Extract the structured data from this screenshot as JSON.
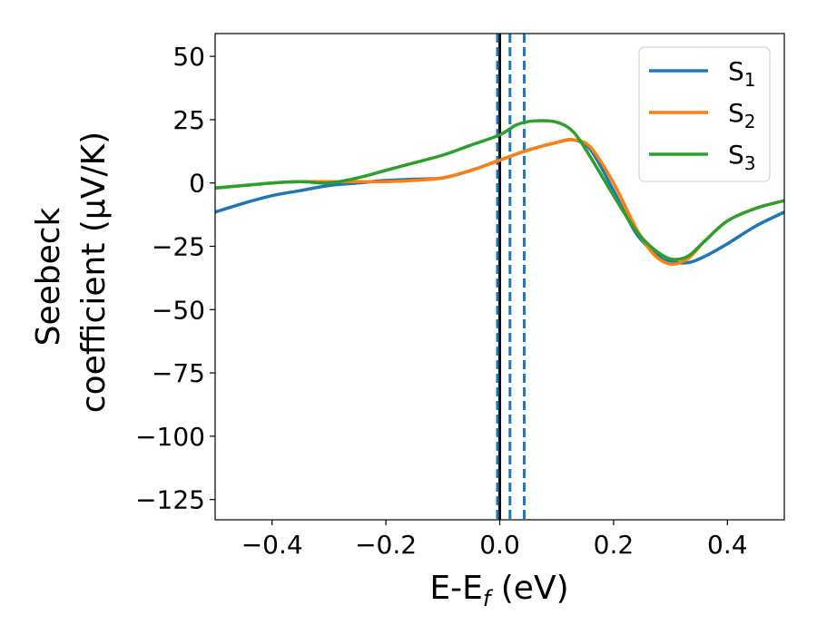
{
  "chart_data": {
    "type": "line",
    "title": "",
    "xlabel": "E-E",
    "xlabel_sub": "f",
    "xlabel_unit": " (eV)",
    "ylabel_line1": "Seebeck",
    "ylabel_line2": "coefficient  (μV/K)",
    "xlim": [
      -0.5,
      0.5
    ],
    "ylim": [
      -133,
      59
    ],
    "xticks": [
      -0.4,
      -0.2,
      0.0,
      0.2,
      0.4
    ],
    "xtick_labels": [
      "−0.4",
      "−0.2",
      "0.0",
      "0.2",
      "0.4"
    ],
    "yticks": [
      50,
      25,
      0,
      -25,
      -50,
      -75,
      -100,
      -125
    ],
    "ytick_labels": [
      "50",
      "25",
      "0",
      "−25",
      "−50",
      "−75",
      "−100",
      "−125"
    ],
    "grid": false,
    "legend_position": "top-right",
    "vlines": [
      {
        "x": 0.0,
        "style": "solid",
        "color": "#000000"
      },
      {
        "x": -0.004,
        "style": "dashed",
        "color": "#1f77b4"
      },
      {
        "x": 0.018,
        "style": "dashed",
        "color": "#1f77b4"
      },
      {
        "x": 0.043,
        "style": "dashed",
        "color": "#1f77b4"
      }
    ],
    "series": [
      {
        "name": "S",
        "sub": "1",
        "color": "#1f77b4",
        "x": [
          -0.5,
          -0.45,
          -0.4,
          -0.35,
          -0.3,
          -0.25,
          -0.2,
          -0.15,
          -0.1,
          -0.05,
          0.0,
          0.05,
          0.1,
          0.13,
          0.16,
          0.2,
          0.24,
          0.28,
          0.3,
          0.33,
          0.36,
          0.4,
          0.45,
          0.5
        ],
        "y": [
          -11.5,
          -8,
          -5,
          -3,
          -1,
          0,
          1,
          1.5,
          2,
          5,
          9,
          13,
          16,
          17,
          13,
          -3,
          -20,
          -29,
          -31,
          -31.5,
          -29,
          -24,
          -17,
          -11.5
        ]
      },
      {
        "name": "S",
        "sub": "2",
        "color": "#ff7f0e",
        "x": [
          -0.5,
          -0.45,
          -0.4,
          -0.35,
          -0.3,
          -0.25,
          -0.2,
          -0.15,
          -0.1,
          -0.05,
          0.0,
          0.05,
          0.1,
          0.13,
          0.16,
          0.2,
          0.24,
          0.27,
          0.3,
          0.33,
          0.36,
          0.4,
          0.45,
          0.5
        ],
        "y": [
          -2,
          -1,
          0,
          0.5,
          0.5,
          0.5,
          0.5,
          1,
          2,
          5,
          9,
          13,
          16,
          17,
          14,
          0,
          -18,
          -28,
          -32,
          -30,
          -23,
          -15,
          -10,
          -7
        ]
      },
      {
        "name": "S",
        "sub": "3",
        "color": "#2ca02c",
        "x": [
          -0.5,
          -0.45,
          -0.4,
          -0.35,
          -0.3,
          -0.25,
          -0.2,
          -0.15,
          -0.1,
          -0.05,
          0.0,
          0.03,
          0.06,
          0.1,
          0.13,
          0.16,
          0.2,
          0.24,
          0.27,
          0.3,
          0.33,
          0.36,
          0.4,
          0.45,
          0.5
        ],
        "y": [
          -2,
          -1,
          0,
          0.5,
          0,
          2,
          5,
          8,
          11,
          15,
          19,
          23,
          24.5,
          24,
          20,
          10,
          -5,
          -19,
          -26,
          -30,
          -29,
          -23,
          -15,
          -10,
          -7
        ]
      }
    ]
  }
}
